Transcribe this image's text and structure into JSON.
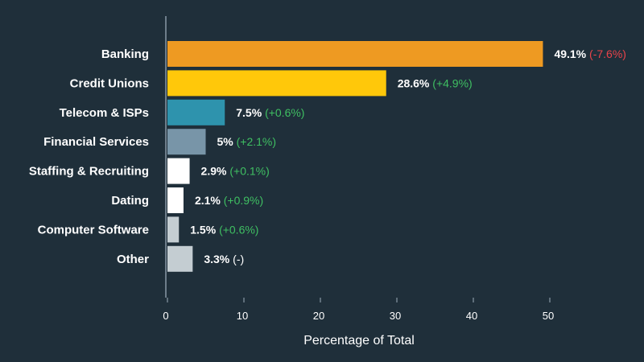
{
  "chart_data": {
    "type": "bar",
    "orientation": "horizontal",
    "title": "",
    "xlabel": "Percentage of Total",
    "ylabel": "",
    "xlim": [
      0,
      50
    ],
    "xticks": [
      0,
      10,
      20,
      30,
      40,
      50
    ],
    "grid": false,
    "categories": [
      "Banking",
      "Credit Unions",
      "Telecom & ISPs",
      "Financial Services",
      "Staffing & Recruiting",
      "Dating",
      "Computer Software",
      "Other"
    ],
    "values": [
      49.1,
      28.6,
      7.5,
      5,
      2.9,
      2.1,
      1.5,
      3.3
    ],
    "value_labels": [
      "49.1%",
      "28.6%",
      "7.5%",
      "5%",
      "2.9%",
      "2.1%",
      "1.5%",
      "3.3%"
    ],
    "change_labels": [
      "(-7.6%)",
      "(+4.9%)",
      "(+0.6%)",
      "(+2.1%)",
      "(+0.1%)",
      "(+0.9%)",
      "(+0.6%)",
      "(-)"
    ],
    "bar_colors": [
      "#ee9a22",
      "#ffc80a",
      "#2e93ad",
      "#7895a8",
      "#ffffff",
      "#ffffff",
      "#c4cdd2",
      "#c4cdd2"
    ],
    "change_colors": [
      "#e8434a",
      "#3fbf62",
      "#3fbf62",
      "#3fbf62",
      "#3fbf62",
      "#3fbf62",
      "#3fbf62",
      "#ffffff"
    ],
    "axis_color": "#8899a6"
  }
}
